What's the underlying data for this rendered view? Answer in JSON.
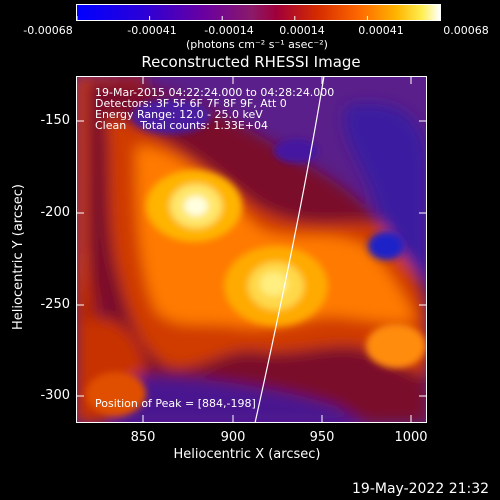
{
  "colorbar": {
    "ticks": [
      "-0.00068",
      "-0.00041",
      "-0.00014",
      "0.00014",
      "0.00041",
      "0.00068"
    ],
    "units_label": "(photons cm⁻² s⁻¹ asec⁻²)"
  },
  "plot": {
    "title": "Reconstructed RHESSI Image",
    "xlabel": "Heliocentric X (arcsec)",
    "ylabel": "Heliocentric Y (arcsec)",
    "xticks": [
      "850",
      "900",
      "950",
      "1000"
    ],
    "yticks": [
      "-150",
      "-200",
      "-250",
      "-300"
    ],
    "info_lines": [
      "19-Mar-2015 04:22:24.000 to 04:28:24.000",
      "Detectors: 3F 5F 6F 7F 8F 9F, Att 0",
      "Energy Range: 12.0 - 25.0 keV",
      "Clean    Total counts: 1.33E+04"
    ],
    "peak_label": "Position of Peak = [884,-198]"
  },
  "footer": {
    "timestamp": "19-May-2022 21:32"
  },
  "colors": {
    "background": "#000000",
    "foreground": "#ffffff",
    "limb": "#ffffff"
  }
}
